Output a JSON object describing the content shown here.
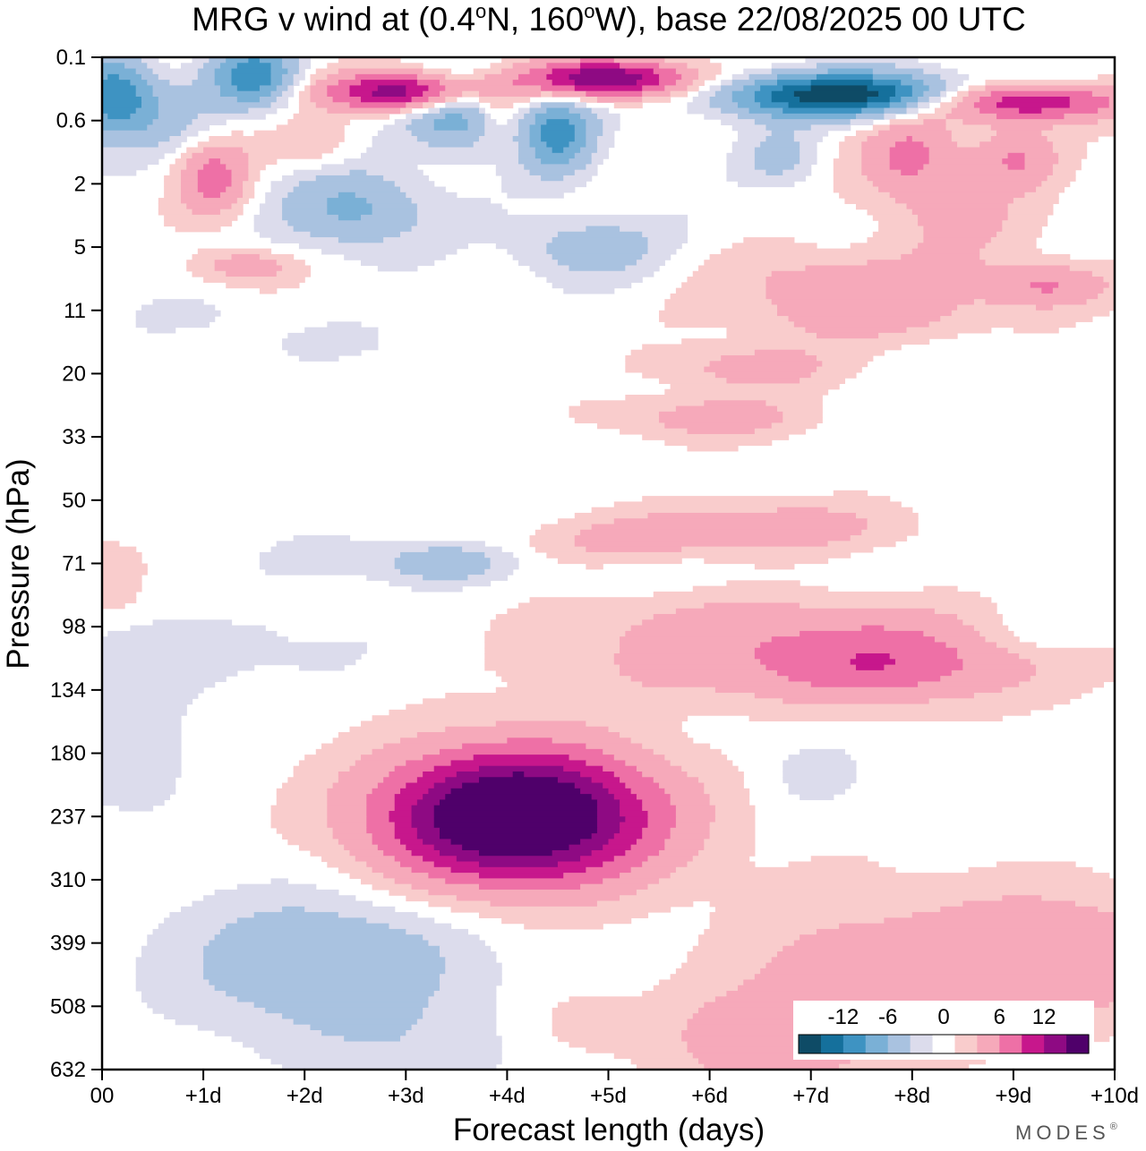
{
  "chart_data": {
    "type": "heatmap",
    "title": "MRG v wind at (0.4°N, 160°W),  base 22/08/2025  00 UTC",
    "title_parts": {
      "pre": "MRG v wind at (0.4",
      "deg1": "o",
      "mid": "N, 160",
      "deg2": "o",
      "post": "W),  base 22/08/2025  00 UTC"
    },
    "xlabel": "Forecast length (days)",
    "ylabel": "Pressure (hPa)",
    "x_ticks": [
      "00",
      "+1d",
      "+2d",
      "+3d",
      "+4d",
      "+5d",
      "+6d",
      "+7d",
      "+8d",
      "+9d",
      "+10d"
    ],
    "y_ticks": [
      "0.1",
      "0.6",
      "2",
      "5",
      "11",
      "20",
      "33",
      "50",
      "71",
      "98",
      "134",
      "180",
      "237",
      "310",
      "399",
      "508",
      "632"
    ],
    "xlim": [
      0,
      10
    ],
    "levels": [
      -15,
      -12,
      -9,
      -6,
      -3,
      -1,
      1,
      3,
      6,
      9,
      12,
      15
    ],
    "colorbar": {
      "tick_labels": [
        "-12",
        "-6",
        "0",
        "6",
        "12"
      ],
      "tick_values": [
        -12,
        -6,
        0,
        6,
        12
      ],
      "colors": [
        "#0e4b66",
        "#15709c",
        "#3e93c2",
        "#7ab0d6",
        "#a9c2e0",
        "#dcdcec",
        "#ffffff",
        "#f9cccc",
        "#f6a9ba",
        "#ee70a6",
        "#c7178c",
        "#8e0a83",
        "#4f006a"
      ]
    },
    "features": [
      {
        "name": "upper-troposphere-maximum",
        "day": 4.1,
        "level": 12,
        "amplitude": 22
      },
      {
        "name": "upper-troposphere-tail",
        "day": 7.0,
        "level": 9.6,
        "amplitude": 5
      },
      {
        "name": "lower-troposphere-positive",
        "day": 9.3,
        "level": 14.2,
        "amplitude": 6
      },
      {
        "name": "lower-troposphere-negative",
        "day": 2.2,
        "level": 14.3,
        "amplitude": -6
      },
      {
        "name": "stratosphere-negative-band-a",
        "day": 7.4,
        "level": 0.6,
        "amplitude": -18
      },
      {
        "name": "stratosphere-positive-band-a",
        "day": 5.0,
        "level": 0.35,
        "amplitude": 16
      },
      {
        "name": "stratosphere-positive-band-b",
        "day": 3.0,
        "level": 0.55,
        "amplitude": 15
      },
      {
        "name": "stratosphere-positive-band-c",
        "day": 9.0,
        "level": 0.7,
        "amplitude": 14
      }
    ]
  },
  "branding": {
    "logo_text": "MODES",
    "registered_mark": "®"
  }
}
